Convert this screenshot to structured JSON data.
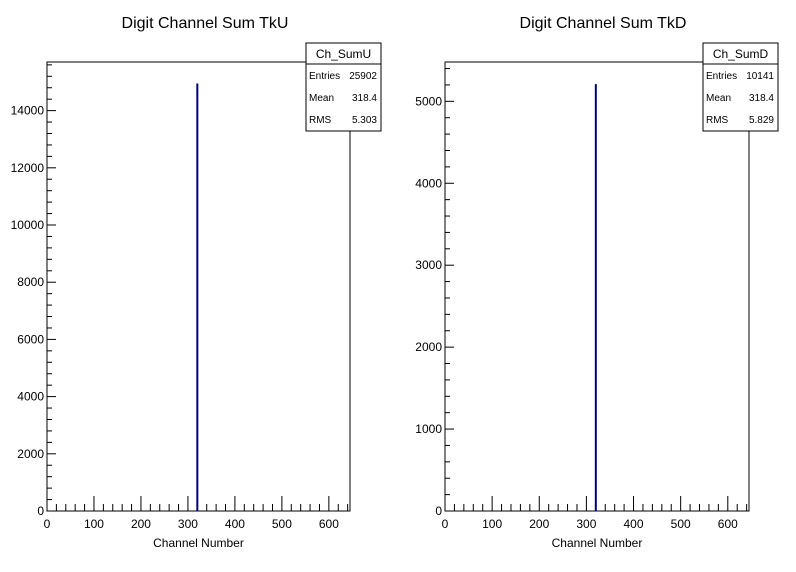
{
  "chart_data": [
    {
      "type": "bar",
      "title": "Digit Channel Sum TkU",
      "xlabel": "Channel Number",
      "ylabel": "",
      "xlim": [
        0,
        645
      ],
      "ylim": [
        0,
        15700
      ],
      "x_ticks": [
        0,
        100,
        200,
        300,
        400,
        500,
        600
      ],
      "y_ticks": [
        0,
        2000,
        4000,
        6000,
        8000,
        10000,
        12000,
        14000
      ],
      "bins": [
        {
          "x": 320,
          "value": 14950
        }
      ],
      "line_color": "#000080",
      "stats": {
        "name": "Ch_SumU",
        "rows": [
          {
            "label": "Entries",
            "value": "25902"
          },
          {
            "label": "Mean",
            "value": "318.4"
          },
          {
            "label": "RMS",
            "value": "5.303"
          }
        ]
      }
    },
    {
      "type": "bar",
      "title": "Digit Channel Sum TkD",
      "xlabel": "Channel Number",
      "ylabel": "",
      "xlim": [
        0,
        645
      ],
      "ylim": [
        0,
        5480
      ],
      "x_ticks": [
        0,
        100,
        200,
        300,
        400,
        500,
        600
      ],
      "y_ticks": [
        0,
        1000,
        2000,
        3000,
        4000,
        5000
      ],
      "bins": [
        {
          "x": 320,
          "value": 5210
        }
      ],
      "line_color": "#000080",
      "stats": {
        "name": "Ch_SumD",
        "rows": [
          {
            "label": "Entries",
            "value": "10141"
          },
          {
            "label": "Mean",
            "value": "318.4"
          },
          {
            "label": "RMS",
            "value": "5.829"
          }
        ]
      }
    }
  ]
}
